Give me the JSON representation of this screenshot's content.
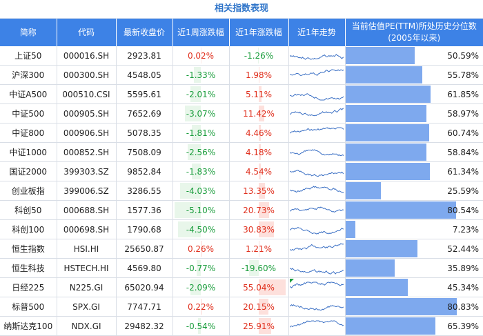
{
  "title": "相关指数表现",
  "headers": {
    "name": "简称",
    "code": "代码",
    "close": "最新收盘价",
    "week": "近1周涨跌幅",
    "year": "近1年涨跌幅",
    "trend": "近1年走势",
    "pe_line1": "当前估值PE(TTM)所处历史分位数",
    "pe_line2": "(2005年以来)"
  },
  "colors": {
    "header_bg": "#3d82e6",
    "pe_bar": "#7ea9ee",
    "up": "#e0301e",
    "down": "#1a9d3c",
    "spark": "#3a6fc4"
  },
  "rows": [
    {
      "name": "上证50",
      "code": "000016.SH",
      "close": "2923.81",
      "week": "0.02%",
      "week_v": 0.02,
      "year": "-1.26%",
      "year_v": -1.26,
      "pe": "50.59%",
      "pe_v": 50.59
    },
    {
      "name": "沪深300",
      "code": "000300.SH",
      "close": "4548.05",
      "week": "-1.33%",
      "week_v": -1.33,
      "year": "1.98%",
      "year_v": 1.98,
      "pe": "55.78%",
      "pe_v": 55.78
    },
    {
      "name": "中证A500",
      "code": "000510.CSI",
      "close": "5595.61",
      "week": "-2.01%",
      "week_v": -2.01,
      "year": "5.11%",
      "year_v": 5.11,
      "pe": "61.85%",
      "pe_v": 61.85
    },
    {
      "name": "中证500",
      "code": "000905.SH",
      "close": "7652.69",
      "week": "-3.07%",
      "week_v": -3.07,
      "year": "11.42%",
      "year_v": 11.42,
      "pe": "58.97%",
      "pe_v": 58.97
    },
    {
      "name": "中证800",
      "code": "000906.SH",
      "close": "5078.35",
      "week": "-1.81%",
      "week_v": -1.81,
      "year": "4.46%",
      "year_v": 4.46,
      "pe": "60.74%",
      "pe_v": 60.74
    },
    {
      "name": "中证1000",
      "code": "000852.SH",
      "close": "7508.09",
      "week": "-2.56%",
      "week_v": -2.56,
      "year": "4.18%",
      "year_v": 4.18,
      "pe": "58.84%",
      "pe_v": 58.84
    },
    {
      "name": "国证2000",
      "code": "399303.SZ",
      "close": "9852.84",
      "week": "-1.83%",
      "week_v": -1.83,
      "year": "4.54%",
      "year_v": 4.54,
      "pe": "61.34%",
      "pe_v": 61.34
    },
    {
      "name": "创业板指",
      "code": "399006.SZ",
      "close": "3286.55",
      "week": "-4.03%",
      "week_v": -4.03,
      "year": "13.35%",
      "year_v": 13.35,
      "pe": "25.59%",
      "pe_v": 25.59
    },
    {
      "name": "科创50",
      "code": "000688.SH",
      "close": "1577.36",
      "week": "-5.10%",
      "week_v": -5.1,
      "year": "20.73%",
      "year_v": 20.73,
      "pe": "80.54%",
      "pe_v": 80.54
    },
    {
      "name": "科创100",
      "code": "000698.SH",
      "close": "1790.68",
      "week": "-4.50%",
      "week_v": -4.5,
      "year": "30.83%",
      "year_v": 30.83,
      "pe": "7.23%",
      "pe_v": 7.23
    },
    {
      "name": "恒生指数",
      "code": "HSI.HI",
      "close": "25650.87",
      "week": "0.26%",
      "week_v": 0.26,
      "year": "1.21%",
      "year_v": 1.21,
      "pe": "52.44%",
      "pe_v": 52.44
    },
    {
      "name": "恒生科技",
      "code": "HSTECH.HI",
      "close": "4569.80",
      "week": "-0.77%",
      "week_v": -0.77,
      "year": "-19.60%",
      "year_v": -19.6,
      "pe": "35.89%",
      "pe_v": 35.89
    },
    {
      "name": "日经225",
      "code": "N225.GI",
      "close": "65020.94",
      "week": "-2.09%",
      "week_v": -2.09,
      "year": "55.04%",
      "year_v": 55.04,
      "pe": "45.34%",
      "pe_v": 45.34
    },
    {
      "name": "标普500",
      "code": "SPX.GI",
      "close": "7747.71",
      "week": "0.22%",
      "week_v": 0.22,
      "year": "20.15%",
      "year_v": 20.15,
      "pe": "80.83%",
      "pe_v": 80.83
    },
    {
      "name": "纳斯达克100",
      "code": "NDX.GI",
      "close": "29482.32",
      "week": "-0.54%",
      "week_v": -0.54,
      "year": "25.91%",
      "year_v": 25.91,
      "pe": "65.39%",
      "pe_v": 65.39
    }
  ]
}
